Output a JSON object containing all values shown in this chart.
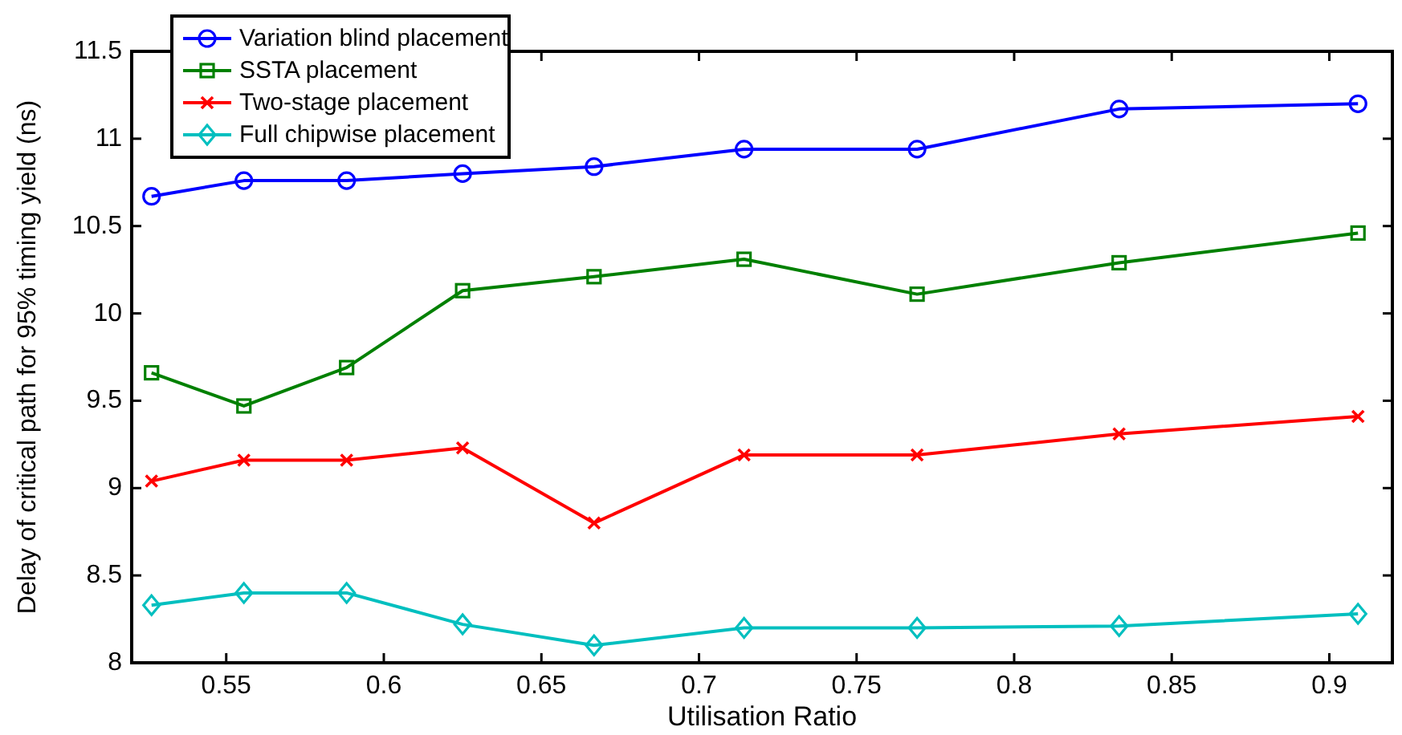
{
  "chart_data": {
    "type": "line",
    "xlabel": "Utilisation Ratio",
    "ylabel": "Delay of critical path for 95% timing yield (ns)",
    "x": [
      0.5263,
      0.5556,
      0.5882,
      0.625,
      0.6667,
      0.7143,
      0.7692,
      0.8333,
      0.9091
    ],
    "xlim": [
      0.52,
      0.92
    ],
    "xticks": [
      {
        "value": 0.55,
        "label": "0.55"
      },
      {
        "value": 0.6,
        "label": "0.6"
      },
      {
        "value": 0.65,
        "label": "0.65"
      },
      {
        "value": 0.7,
        "label": "0.7"
      },
      {
        "value": 0.75,
        "label": "0.75"
      },
      {
        "value": 0.8,
        "label": "0.8"
      },
      {
        "value": 0.85,
        "label": "0.85"
      },
      {
        "value": 0.9,
        "label": "0.9"
      }
    ],
    "ylim": [
      8,
      11.5
    ],
    "yticks": [
      8,
      8.5,
      9,
      9.5,
      10,
      10.5,
      11,
      11.5
    ],
    "grid": false,
    "legend": "top left",
    "line_style": "solid",
    "series": [
      {
        "name": "Variation blind placement",
        "color": "#0000ff",
        "marker": "circle",
        "values": [
          10.67,
          10.76,
          10.76,
          10.8,
          10.84,
          10.94,
          10.94,
          11.17,
          11.2
        ]
      },
      {
        "name": "SSTA placement",
        "color": "#008000",
        "marker": "square",
        "values": [
          9.66,
          9.47,
          9.69,
          10.13,
          10.21,
          10.31,
          10.11,
          10.29,
          10.46
        ]
      },
      {
        "name": "Two-stage placement",
        "color": "#ff0000",
        "marker": "cross",
        "values": [
          9.04,
          9.16,
          9.16,
          9.23,
          8.8,
          9.19,
          9.19,
          9.31,
          9.41
        ]
      },
      {
        "name": "Full chipwise placement",
        "color": "#00bfbf",
        "marker": "diamond",
        "values": [
          8.33,
          8.4,
          8.4,
          8.22,
          8.1,
          8.2,
          8.2,
          8.21,
          8.28
        ]
      }
    ]
  }
}
